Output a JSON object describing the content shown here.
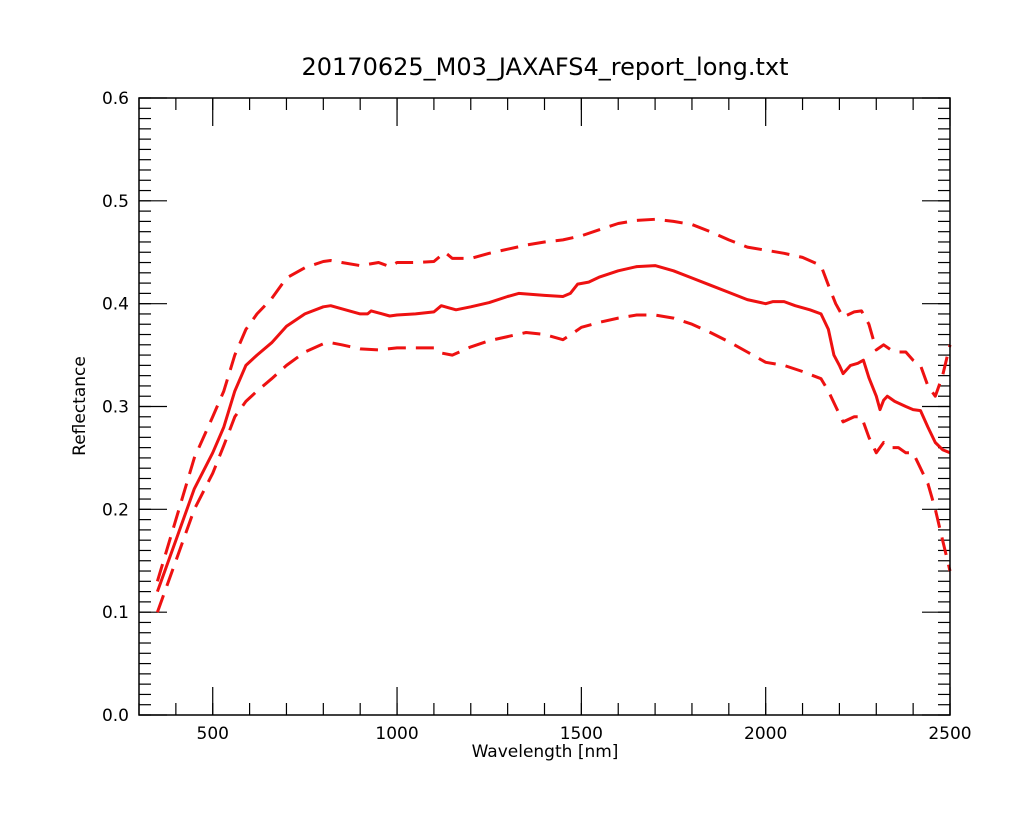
{
  "chart_data": {
    "type": "line",
    "title": "20170625_M03_JAXAFS4_report_long.txt",
    "xlabel": "Wavelength [nm]",
    "ylabel": "Reflectance",
    "xlim": [
      300,
      2500
    ],
    "ylim": [
      0.0,
      0.6
    ],
    "x_ticks": [
      500,
      1000,
      1500,
      2000,
      2500
    ],
    "x_minor_step": 100,
    "y_ticks": [
      0.0,
      0.1,
      0.2,
      0.3,
      0.4,
      0.5,
      0.6
    ],
    "y_tick_labels": [
      "0.0",
      "0.1",
      "0.2",
      "0.3",
      "0.4",
      "0.5",
      "0.6"
    ],
    "y_minor_step": 0.01,
    "grid": false,
    "legend": "none",
    "color": "#ee1111",
    "series": [
      {
        "style": "solid",
        "points": [
          [
            350,
            0.12
          ],
          [
            400,
            0.17
          ],
          [
            450,
            0.22
          ],
          [
            500,
            0.255
          ],
          [
            530,
            0.28
          ],
          [
            560,
            0.315
          ],
          [
            590,
            0.34
          ],
          [
            620,
            0.35
          ],
          [
            660,
            0.362
          ],
          [
            700,
            0.378
          ],
          [
            750,
            0.39
          ],
          [
            800,
            0.397
          ],
          [
            820,
            0.398
          ],
          [
            850,
            0.395
          ],
          [
            900,
            0.39
          ],
          [
            920,
            0.39
          ],
          [
            930,
            0.393
          ],
          [
            950,
            0.391
          ],
          [
            980,
            0.388
          ],
          [
            1000,
            0.389
          ],
          [
            1050,
            0.39
          ],
          [
            1100,
            0.392
          ],
          [
            1120,
            0.398
          ],
          [
            1140,
            0.396
          ],
          [
            1160,
            0.394
          ],
          [
            1200,
            0.397
          ],
          [
            1250,
            0.401
          ],
          [
            1300,
            0.407
          ],
          [
            1330,
            0.41
          ],
          [
            1400,
            0.408
          ],
          [
            1450,
            0.407
          ],
          [
            1470,
            0.41
          ],
          [
            1490,
            0.419
          ],
          [
            1520,
            0.421
          ],
          [
            1550,
            0.426
          ],
          [
            1600,
            0.432
          ],
          [
            1650,
            0.436
          ],
          [
            1700,
            0.437
          ],
          [
            1750,
            0.432
          ],
          [
            1800,
            0.425
          ],
          [
            1850,
            0.418
          ],
          [
            1900,
            0.411
          ],
          [
            1950,
            0.404
          ],
          [
            2000,
            0.4
          ],
          [
            2020,
            0.402
          ],
          [
            2050,
            0.402
          ],
          [
            2080,
            0.398
          ],
          [
            2120,
            0.394
          ],
          [
            2150,
            0.39
          ],
          [
            2170,
            0.375
          ],
          [
            2185,
            0.35
          ],
          [
            2200,
            0.34
          ],
          [
            2210,
            0.332
          ],
          [
            2230,
            0.34
          ],
          [
            2250,
            0.342
          ],
          [
            2265,
            0.345
          ],
          [
            2280,
            0.328
          ],
          [
            2300,
            0.31
          ],
          [
            2310,
            0.297
          ],
          [
            2320,
            0.306
          ],
          [
            2330,
            0.31
          ],
          [
            2350,
            0.305
          ],
          [
            2380,
            0.3
          ],
          [
            2400,
            0.297
          ],
          [
            2420,
            0.296
          ],
          [
            2440,
            0.28
          ],
          [
            2460,
            0.265
          ],
          [
            2480,
            0.258
          ],
          [
            2500,
            0.255
          ]
        ]
      },
      {
        "style": "dashed",
        "points": [
          [
            350,
            0.13
          ],
          [
            400,
            0.19
          ],
          [
            450,
            0.25
          ],
          [
            500,
            0.29
          ],
          [
            530,
            0.315
          ],
          [
            560,
            0.35
          ],
          [
            590,
            0.375
          ],
          [
            620,
            0.39
          ],
          [
            660,
            0.405
          ],
          [
            700,
            0.425
          ],
          [
            750,
            0.435
          ],
          [
            800,
            0.441
          ],
          [
            820,
            0.442
          ],
          [
            850,
            0.44
          ],
          [
            900,
            0.437
          ],
          [
            950,
            0.44
          ],
          [
            980,
            0.436
          ],
          [
            1000,
            0.44
          ],
          [
            1050,
            0.44
          ],
          [
            1100,
            0.441
          ],
          [
            1120,
            0.447
          ],
          [
            1130,
            0.45
          ],
          [
            1150,
            0.444
          ],
          [
            1200,
            0.444
          ],
          [
            1250,
            0.449
          ],
          [
            1300,
            0.453
          ],
          [
            1350,
            0.457
          ],
          [
            1400,
            0.46
          ],
          [
            1450,
            0.462
          ],
          [
            1500,
            0.466
          ],
          [
            1550,
            0.472
          ],
          [
            1600,
            0.478
          ],
          [
            1650,
            0.481
          ],
          [
            1700,
            0.482
          ],
          [
            1750,
            0.48
          ],
          [
            1800,
            0.477
          ],
          [
            1850,
            0.47
          ],
          [
            1900,
            0.462
          ],
          [
            1950,
            0.455
          ],
          [
            2000,
            0.452
          ],
          [
            2050,
            0.449
          ],
          [
            2100,
            0.445
          ],
          [
            2150,
            0.437
          ],
          [
            2170,
            0.418
          ],
          [
            2190,
            0.4
          ],
          [
            2210,
            0.387
          ],
          [
            2240,
            0.392
          ],
          [
            2260,
            0.393
          ],
          [
            2280,
            0.38
          ],
          [
            2300,
            0.355
          ],
          [
            2320,
            0.36
          ],
          [
            2340,
            0.355
          ],
          [
            2360,
            0.353
          ],
          [
            2380,
            0.353
          ],
          [
            2400,
            0.345
          ],
          [
            2420,
            0.34
          ],
          [
            2440,
            0.32
          ],
          [
            2460,
            0.31
          ],
          [
            2480,
            0.33
          ],
          [
            2500,
            0.36
          ]
        ]
      },
      {
        "style": "dashed",
        "points": [
          [
            350,
            0.1
          ],
          [
            400,
            0.15
          ],
          [
            450,
            0.2
          ],
          [
            500,
            0.235
          ],
          [
            530,
            0.262
          ],
          [
            560,
            0.29
          ],
          [
            590,
            0.305
          ],
          [
            620,
            0.315
          ],
          [
            660,
            0.327
          ],
          [
            700,
            0.34
          ],
          [
            750,
            0.353
          ],
          [
            800,
            0.361
          ],
          [
            820,
            0.362
          ],
          [
            850,
            0.36
          ],
          [
            900,
            0.356
          ],
          [
            950,
            0.355
          ],
          [
            1000,
            0.357
          ],
          [
            1050,
            0.357
          ],
          [
            1100,
            0.357
          ],
          [
            1120,
            0.352
          ],
          [
            1150,
            0.35
          ],
          [
            1200,
            0.358
          ],
          [
            1250,
            0.364
          ],
          [
            1300,
            0.368
          ],
          [
            1350,
            0.372
          ],
          [
            1400,
            0.37
          ],
          [
            1450,
            0.365
          ],
          [
            1480,
            0.372
          ],
          [
            1500,
            0.377
          ],
          [
            1550,
            0.382
          ],
          [
            1600,
            0.386
          ],
          [
            1650,
            0.389
          ],
          [
            1700,
            0.389
          ],
          [
            1750,
            0.386
          ],
          [
            1800,
            0.38
          ],
          [
            1850,
            0.372
          ],
          [
            1900,
            0.363
          ],
          [
            1950,
            0.353
          ],
          [
            2000,
            0.343
          ],
          [
            2050,
            0.34
          ],
          [
            2100,
            0.334
          ],
          [
            2150,
            0.327
          ],
          [
            2170,
            0.315
          ],
          [
            2190,
            0.3
          ],
          [
            2210,
            0.285
          ],
          [
            2240,
            0.29
          ],
          [
            2260,
            0.29
          ],
          [
            2280,
            0.27
          ],
          [
            2300,
            0.255
          ],
          [
            2320,
            0.265
          ],
          [
            2340,
            0.26
          ],
          [
            2360,
            0.26
          ],
          [
            2380,
            0.255
          ],
          [
            2400,
            0.255
          ],
          [
            2420,
            0.24
          ],
          [
            2440,
            0.225
          ],
          [
            2460,
            0.2
          ],
          [
            2480,
            0.17
          ],
          [
            2500,
            0.14
          ]
        ]
      }
    ]
  }
}
